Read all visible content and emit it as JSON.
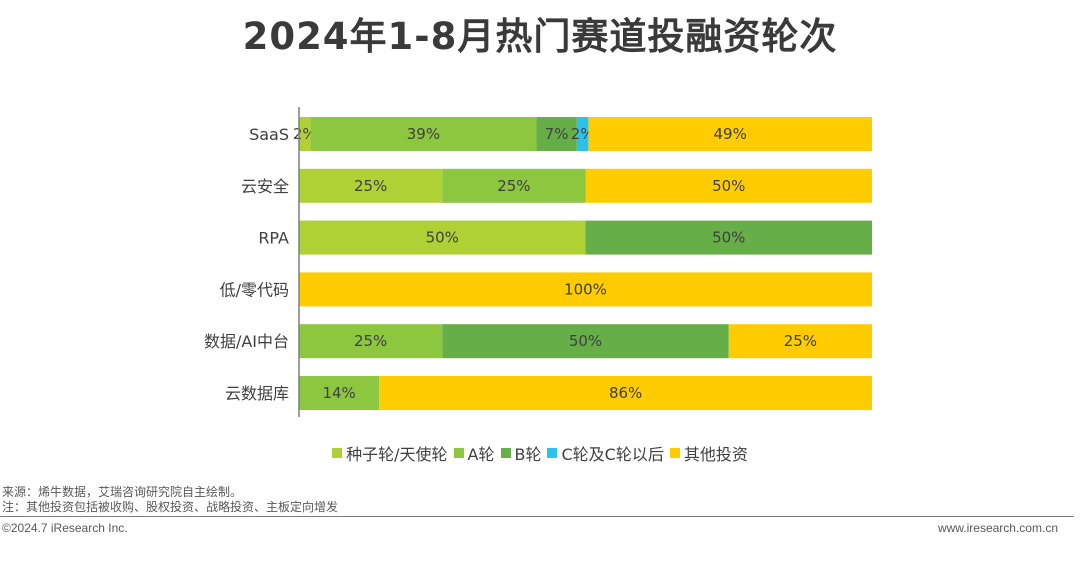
{
  "title": "2024年1-8月热门赛道投融资轮次",
  "chart_data": {
    "type": "bar",
    "orientation": "horizontal",
    "stacked": "percent",
    "categories": [
      "SaaS",
      "云安全",
      "RPA",
      "低/零代码",
      "数据/AI中台",
      "云数据库"
    ],
    "series": [
      {
        "name": "种子轮/天使轮",
        "color": "#B0D136",
        "values": [
          2,
          25,
          50,
          0,
          0,
          0
        ],
        "labels": [
          "2%",
          "25%",
          "50%",
          "",
          "",
          ""
        ]
      },
      {
        "name": "A轮",
        "color": "#8DC63F",
        "values": [
          39,
          25,
          0,
          0,
          25,
          14
        ],
        "labels": [
          "39%",
          "25%",
          "",
          "",
          "25%",
          "14%"
        ]
      },
      {
        "name": "B轮",
        "color": "#66AE47",
        "values": [
          7,
          0,
          50,
          0,
          50,
          0
        ],
        "labels": [
          "7%",
          "",
          "50%",
          "",
          "50%",
          ""
        ]
      },
      {
        "name": "C轮及C轮以后",
        "color": "#29C3EE",
        "values": [
          2,
          0,
          0,
          0,
          0,
          0
        ],
        "labels": [
          "2%",
          "",
          "",
          "",
          "",
          ""
        ]
      },
      {
        "name": "其他投资",
        "color": "#FFCC00",
        "values": [
          49,
          50,
          0,
          100,
          25,
          86
        ],
        "labels": [
          "49%",
          "50%",
          "",
          "100%",
          "25%",
          "86%"
        ]
      }
    ],
    "legend_position": "bottom",
    "grid": false
  },
  "notes": {
    "source": "来源：烯牛数据，艾瑞咨询研究院自主绘制。",
    "note": "注：其他投资包括被收购、股权投资、战略投资、主板定向增发"
  },
  "footer": {
    "copyright": "©2024.7 iResearch Inc.",
    "website": "www.iresearch.com.cn"
  }
}
